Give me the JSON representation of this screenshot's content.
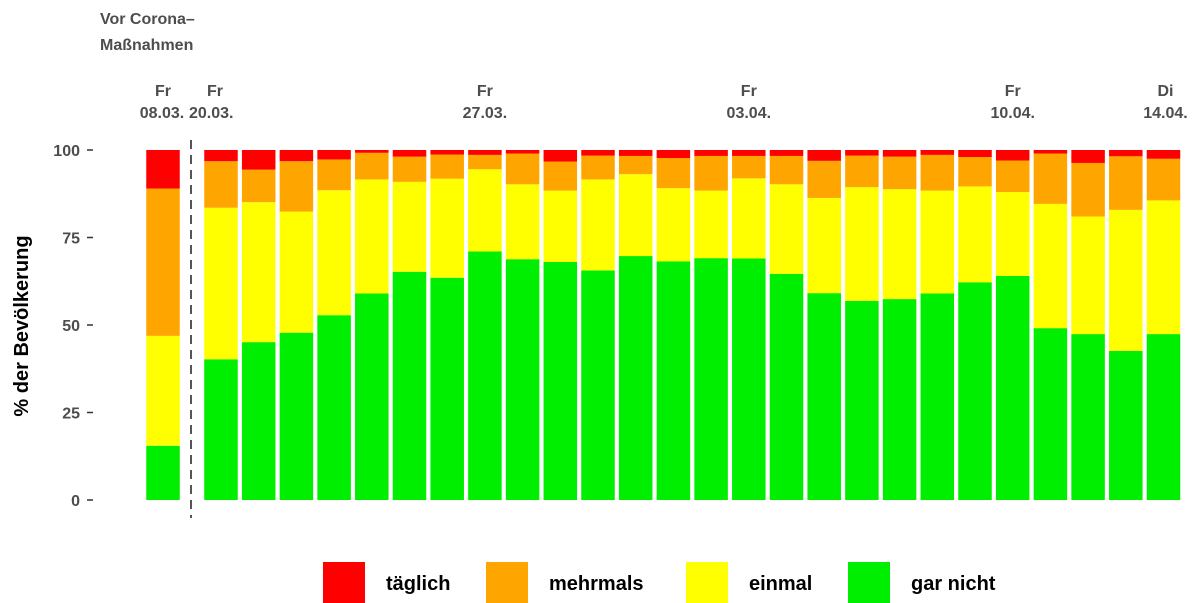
{
  "annotation": {
    "line1": "Vor Corona–",
    "line2": "Maßnahmen"
  },
  "chart_data": {
    "type": "bar",
    "stacked": true,
    "ylabel": "% der Bevölkerung",
    "ylim": [
      0,
      100
    ],
    "yticks": [
      "0",
      "25",
      "50",
      "75",
      "100"
    ],
    "grid": false,
    "legend_position": "bottom",
    "x_labels": [
      {
        "index": 0,
        "day": "Fr",
        "date": "08.03."
      },
      {
        "index": 1,
        "day": "Fr",
        "date": "20.03."
      },
      {
        "index": 8,
        "day": "Fr",
        "date": "27.03."
      },
      {
        "index": 15,
        "day": "Fr",
        "date": "03.04."
      },
      {
        "index": 22,
        "day": "Fr",
        "date": "10.04."
      },
      {
        "index": 26,
        "day": "Di",
        "date": "14.04."
      }
    ],
    "series": [
      {
        "name": "gar nicht",
        "color": "#00ee00",
        "values": [
          15.5,
          40.2,
          45.1,
          47.8,
          52.8,
          59.0,
          65.2,
          63.5,
          71.0,
          68.8,
          68.0,
          65.6,
          69.7,
          68.2,
          69.1,
          69.0,
          64.6,
          59.1,
          56.9,
          57.4,
          59.0,
          62.2,
          64.0,
          49.1,
          47.4,
          42.6,
          47.4
        ]
      },
      {
        "name": "einmal",
        "color": "#ffff00",
        "values": [
          31.4,
          43.3,
          40.0,
          34.6,
          35.7,
          32.6,
          25.7,
          28.3,
          23.5,
          21.4,
          20.4,
          26.0,
          23.4,
          20.9,
          19.3,
          22.9,
          25.6,
          27.2,
          32.5,
          31.4,
          29.4,
          27.4,
          24.0,
          35.5,
          33.6,
          40.3,
          38.2
        ]
      },
      {
        "name": "mehrmals",
        "color": "#ffa500",
        "values": [
          42.1,
          13.3,
          9.3,
          14.4,
          8.8,
          7.6,
          7.2,
          6.9,
          4.1,
          8.8,
          8.3,
          6.8,
          5.2,
          8.6,
          9.9,
          6.4,
          8.1,
          10.6,
          9.0,
          9.3,
          10.2,
          8.4,
          9.0,
          14.4,
          15.3,
          15.3,
          11.9
        ]
      },
      {
        "name": "täglich",
        "color": "#ff0000",
        "values": [
          11.0,
          3.2,
          5.6,
          3.2,
          2.7,
          0.8,
          1.9,
          1.3,
          1.4,
          1.0,
          3.3,
          1.6,
          1.7,
          2.3,
          1.7,
          1.7,
          1.7,
          3.1,
          1.6,
          1.9,
          1.4,
          2.0,
          3.0,
          1.0,
          3.7,
          1.8,
          2.5
        ]
      }
    ],
    "legend_order": [
      "täglich",
      "mehrmals",
      "einmal",
      "gar nicht"
    ]
  }
}
